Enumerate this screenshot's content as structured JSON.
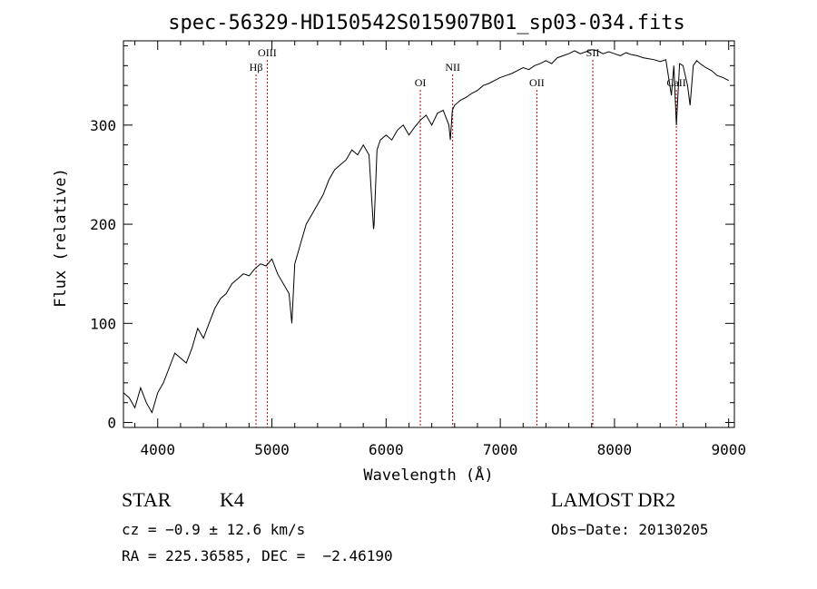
{
  "chart_data": {
    "type": "line",
    "title": "spec-56329-HD150542S015907B01_sp03-034.fits",
    "xlabel": "Wavelength (Å)",
    "ylabel": "Flux (relative)",
    "xlim": [
      3700,
      9050
    ],
    "ylim": [
      -5,
      385
    ],
    "xticks": [
      4000,
      5000,
      6000,
      7000,
      8000,
      9000
    ],
    "yticks": [
      0,
      100,
      200,
      300
    ],
    "grid": false,
    "series": [
      {
        "x": [
          3700,
          3750,
          3800,
          3850,
          3900,
          3950,
          4000,
          4050,
          4100,
          4150,
          4200,
          4250,
          4300,
          4350,
          4400,
          4450,
          4500,
          4550,
          4600,
          4650,
          4700,
          4750,
          4800,
          4850,
          4900,
          4950,
          5000,
          5050,
          5100,
          5150,
          5175,
          5200,
          5250,
          5300,
          5350,
          5400,
          5450,
          5500,
          5550,
          5600,
          5650,
          5700,
          5750,
          5800,
          5850,
          5890,
          5895,
          5920,
          5950,
          6000,
          6050,
          6100,
          6150,
          6200,
          6250,
          6300,
          6350,
          6400,
          6450,
          6500,
          6550,
          6563,
          6580,
          6600,
          6650,
          6700,
          6750,
          6800,
          6850,
          6900,
          6950,
          7000,
          7050,
          7100,
          7150,
          7200,
          7250,
          7300,
          7350,
          7400,
          7450,
          7500,
          7550,
          7600,
          7650,
          7700,
          7750,
          7800,
          7850,
          7900,
          7950,
          8000,
          8050,
          8100,
          8150,
          8200,
          8250,
          8300,
          8350,
          8400,
          8450,
          8498,
          8520,
          8542,
          8570,
          8600,
          8640,
          8662,
          8690,
          8720,
          8750,
          8800,
          8850,
          8900,
          8950,
          9000
        ],
        "y": [
          30,
          25,
          15,
          35,
          20,
          10,
          30,
          40,
          55,
          70,
          65,
          60,
          75,
          95,
          85,
          100,
          115,
          125,
          130,
          140,
          145,
          150,
          148,
          155,
          160,
          158,
          165,
          150,
          140,
          130,
          100,
          160,
          180,
          200,
          210,
          220,
          230,
          245,
          255,
          260,
          265,
          275,
          270,
          280,
          270,
          195,
          200,
          275,
          285,
          290,
          285,
          295,
          300,
          290,
          298,
          305,
          310,
          300,
          312,
          315,
          300,
          285,
          315,
          320,
          325,
          328,
          332,
          335,
          340,
          342,
          345,
          348,
          350,
          352,
          355,
          358,
          356,
          360,
          362,
          365,
          362,
          368,
          370,
          372,
          375,
          372,
          374,
          376,
          375,
          372,
          374,
          372,
          370,
          373,
          371,
          370,
          368,
          367,
          366,
          364,
          366,
          330,
          360,
          300,
          362,
          360,
          340,
          320,
          360,
          365,
          362,
          358,
          355,
          350,
          348,
          345
        ]
      }
    ],
    "lines": [
      {
        "label": "Hβ",
        "x": 4861,
        "label_row": 2
      },
      {
        "label": "OIII",
        "x": 4959,
        "label_row": 1
      },
      {
        "label": "OI",
        "x": 6300,
        "label_row": 3
      },
      {
        "label": "NII",
        "x": 6583,
        "label_row": 2
      },
      {
        "label": "OII",
        "x": 7320,
        "label_row": 3
      },
      {
        "label": "SII",
        "x": 7810,
        "label_row": 1
      },
      {
        "label": "CaII",
        "x": 8542,
        "label_row": 3
      }
    ]
  },
  "info": {
    "class": "STAR",
    "subclass": "K4",
    "survey": "LAMOST DR2",
    "cz": "cz = −0.9 ± 12.6 km/s",
    "obsdate": "Obs−Date: 20130205",
    "radec": "RA = 225.36585, DEC =  −2.46190"
  }
}
